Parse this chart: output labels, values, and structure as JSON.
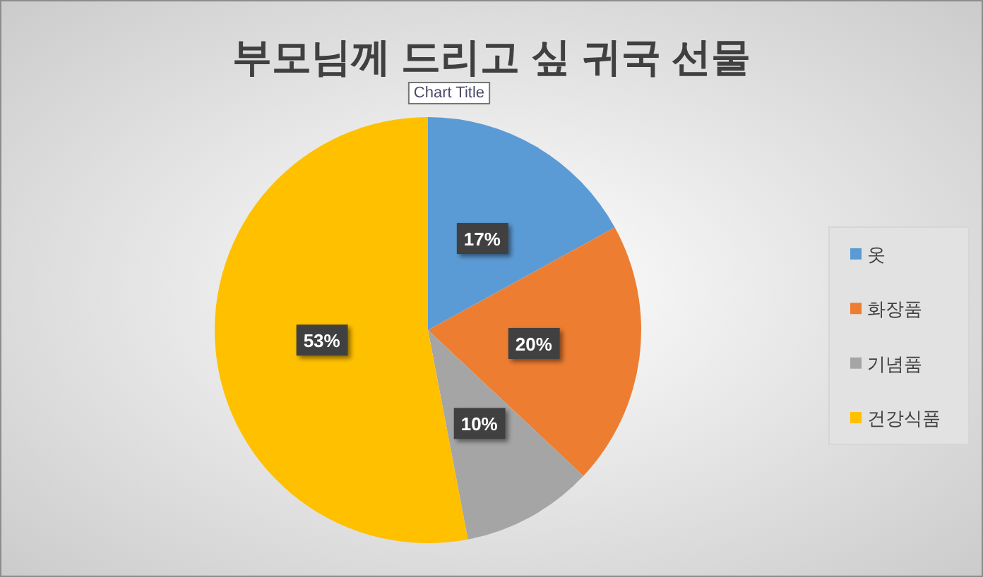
{
  "chart_data": {
    "type": "pie",
    "title": "부모님께 드리고 싶 귀국 선물",
    "categories": [
      "옷",
      "화장품",
      "기념품",
      "건강식품"
    ],
    "values": [
      17,
      20,
      10,
      53
    ],
    "colors": [
      "#5b9bd5",
      "#ed7d31",
      "#a5a5a5",
      "#ffc000"
    ],
    "value_labels": [
      "17%",
      "20%",
      "10%",
      "53%"
    ],
    "legend": "right",
    "annotations": [
      "Chart Title"
    ]
  }
}
